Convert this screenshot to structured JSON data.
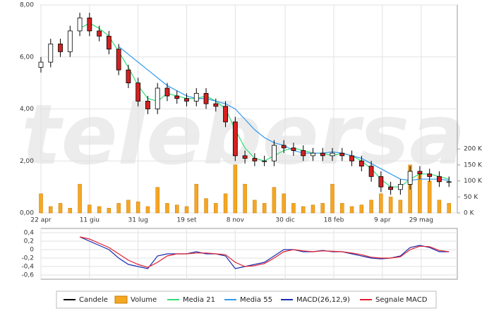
{
  "chart_data": {
    "type": "candlestick",
    "watermark": "telebersa",
    "grid": true,
    "xlim": [
      0,
      300
    ],
    "xticks": [
      {
        "value": 0,
        "label": "22 apr"
      },
      {
        "value": 35,
        "label": "11 giu"
      },
      {
        "value": 70,
        "label": "31 lug"
      },
      {
        "value": 105,
        "label": "19 set"
      },
      {
        "value": 140,
        "label": "8 nov"
      },
      {
        "value": 176,
        "label": "30 dic"
      },
      {
        "value": 211,
        "label": "18 feb"
      },
      {
        "value": 246,
        "label": "9 apr"
      },
      {
        "value": 274,
        "label": "29 mag"
      }
    ],
    "ylim": [
      0,
      8
    ],
    "yticks": [
      {
        "value": 0,
        "label": "0,00"
      },
      {
        "value": 2,
        "label": "2,00"
      },
      {
        "value": 4,
        "label": "4,00"
      },
      {
        "value": 6,
        "label": "6,00"
      },
      {
        "value": 8,
        "label": "8,00"
      }
    ],
    "y2lim": [
      0,
      650
    ],
    "y2ticks": [
      {
        "value": 0,
        "label": "0 K"
      },
      {
        "value": 50,
        "label": "50 K"
      },
      {
        "value": 100,
        "label": "100 K"
      },
      {
        "value": 150,
        "label": "150 K"
      },
      {
        "value": 200,
        "label": "200 K"
      }
    ],
    "y3lim": [
      -0.7,
      0.5
    ],
    "y3ticks": [
      {
        "value": 0.4,
        "label": "0,4"
      },
      {
        "value": 0.2,
        "label": "0,2"
      },
      0,
      {
        "value": -0.2,
        "label": "-0,2"
      },
      {
        "value": -0.4,
        "label": "-0,4"
      },
      {
        "value": -0.6,
        "label": "-0,6"
      }
    ],
    "x": [
      0,
      7,
      14,
      21,
      28,
      35,
      42,
      49,
      56,
      63,
      70,
      77,
      84,
      91,
      98,
      105,
      112,
      119,
      126,
      133,
      140,
      147,
      154,
      161,
      168,
      175,
      182,
      189,
      196,
      203,
      210,
      217,
      224,
      231,
      238,
      245,
      252,
      259,
      266,
      273,
      280,
      287,
      294
    ],
    "series": [
      {
        "name": "Candele",
        "kind": "candlestick",
        "color": "#000000",
        "up_color": "#ffffff",
        "down_color": "#d62020",
        "open": [
          5.6,
          5.8,
          6.5,
          6.2,
          7.0,
          7.5,
          7.0,
          6.8,
          6.3,
          5.5,
          5.0,
          4.3,
          4.0,
          4.8,
          4.5,
          4.4,
          4.3,
          4.6,
          4.2,
          4.1,
          3.5,
          2.2,
          2.1,
          2.0,
          2.0,
          2.6,
          2.5,
          2.4,
          2.2,
          2.3,
          2.2,
          2.3,
          2.2,
          2.0,
          1.8,
          1.4,
          1.0,
          0.9,
          1.1,
          1.6,
          1.5,
          1.4,
          1.2
        ],
        "high": [
          6.0,
          6.7,
          6.7,
          7.2,
          7.7,
          7.7,
          7.2,
          7.0,
          6.5,
          5.7,
          5.2,
          4.5,
          5.0,
          5.0,
          4.7,
          4.6,
          4.8,
          4.8,
          4.4,
          4.3,
          3.7,
          2.4,
          2.3,
          2.2,
          2.8,
          2.8,
          2.7,
          2.6,
          2.5,
          2.5,
          2.5,
          2.5,
          2.4,
          2.2,
          2.0,
          1.6,
          1.2,
          1.3,
          1.8,
          1.8,
          1.7,
          1.6,
          1.4
        ],
        "low": [
          5.4,
          5.6,
          6.0,
          6.0,
          6.8,
          6.8,
          6.6,
          6.1,
          5.3,
          4.8,
          4.1,
          3.8,
          3.8,
          4.3,
          4.2,
          4.1,
          4.1,
          4.0,
          3.9,
          3.3,
          2.0,
          1.9,
          1.8,
          1.8,
          1.8,
          2.3,
          2.2,
          2.0,
          2.0,
          2.0,
          2.0,
          2.0,
          1.8,
          1.6,
          1.2,
          0.8,
          0.7,
          0.7,
          0.9,
          1.3,
          1.2,
          1.0,
          1.0
        ],
        "close": [
          5.8,
          6.5,
          6.2,
          7.0,
          7.5,
          7.0,
          6.8,
          6.3,
          5.5,
          5.0,
          4.3,
          4.0,
          4.8,
          4.5,
          4.4,
          4.3,
          4.6,
          4.2,
          4.1,
          3.5,
          2.2,
          2.1,
          2.0,
          2.0,
          2.6,
          2.5,
          2.4,
          2.2,
          2.3,
          2.2,
          2.3,
          2.2,
          2.0,
          1.8,
          1.4,
          1.0,
          0.9,
          1.1,
          1.6,
          1.5,
          1.4,
          1.2,
          1.2
        ]
      },
      {
        "name": "Volume",
        "kind": "bar",
        "axis": "y2",
        "color": "#f5a623",
        "values": [
          60,
          20,
          30,
          15,
          90,
          25,
          20,
          15,
          30,
          40,
          35,
          20,
          80,
          30,
          25,
          20,
          90,
          45,
          30,
          60,
          150,
          90,
          40,
          30,
          80,
          60,
          30,
          20,
          25,
          30,
          90,
          30,
          20,
          25,
          40,
          60,
          50,
          40,
          150,
          130,
          100,
          40,
          30
        ]
      },
      {
        "name": "Media 21",
        "kind": "line",
        "color": "#33dd77",
        "values": [
          null,
          null,
          null,
          null,
          7.1,
          7.3,
          7.1,
          6.8,
          6.2,
          5.6,
          4.9,
          4.4,
          4.3,
          4.6,
          4.5,
          4.4,
          4.4,
          4.5,
          4.3,
          4.0,
          3.2,
          2.5,
          2.1,
          2.0,
          2.2,
          2.4,
          2.5,
          2.4,
          2.3,
          2.3,
          2.2,
          2.3,
          2.2,
          2.0,
          1.7,
          1.3,
          1.0,
          1.0,
          1.3,
          1.5,
          1.5,
          1.4,
          1.3
        ]
      },
      {
        "name": "Media 55",
        "kind": "line",
        "color": "#3399ee",
        "values": [
          null,
          null,
          null,
          null,
          null,
          null,
          null,
          null,
          6.4,
          6.1,
          5.8,
          5.5,
          5.2,
          4.9,
          4.7,
          4.5,
          4.4,
          4.4,
          4.3,
          4.2,
          4.0,
          3.6,
          3.2,
          2.9,
          2.7,
          2.6,
          2.4,
          2.3,
          2.3,
          2.3,
          2.35,
          2.3,
          2.2,
          2.1,
          1.9,
          1.7,
          1.5,
          1.3,
          1.25,
          1.3,
          1.3,
          1.3,
          1.25
        ]
      },
      {
        "name": "MACD(26,12,9)",
        "kind": "line",
        "axis": "y3",
        "color": "#1a2bb0",
        "values": [
          null,
          null,
          null,
          null,
          0.3,
          0.2,
          0.1,
          0.0,
          -0.2,
          -0.35,
          -0.4,
          -0.45,
          -0.15,
          -0.1,
          -0.1,
          -0.1,
          -0.05,
          -0.1,
          -0.1,
          -0.15,
          -0.45,
          -0.4,
          -0.35,
          -0.3,
          -0.15,
          0.0,
          0.0,
          -0.05,
          -0.05,
          -0.02,
          -0.05,
          -0.05,
          -0.1,
          -0.15,
          -0.2,
          -0.22,
          -0.2,
          -0.15,
          0.05,
          0.1,
          0.05,
          -0.05,
          -0.05
        ]
      },
      {
        "name": "Segnale MACD",
        "kind": "line",
        "axis": "y3",
        "color": "#e02030",
        "values": [
          null,
          null,
          null,
          null,
          0.3,
          0.25,
          0.15,
          0.05,
          -0.1,
          -0.25,
          -0.35,
          -0.42,
          -0.3,
          -0.15,
          -0.1,
          -0.1,
          -0.08,
          -0.08,
          -0.1,
          -0.12,
          -0.3,
          -0.4,
          -0.38,
          -0.33,
          -0.2,
          -0.05,
          0.0,
          -0.03,
          -0.05,
          -0.03,
          -0.04,
          -0.05,
          -0.08,
          -0.12,
          -0.18,
          -0.2,
          -0.2,
          -0.17,
          0.0,
          0.08,
          0.07,
          -0.02,
          -0.05
        ]
      }
    ]
  }
}
